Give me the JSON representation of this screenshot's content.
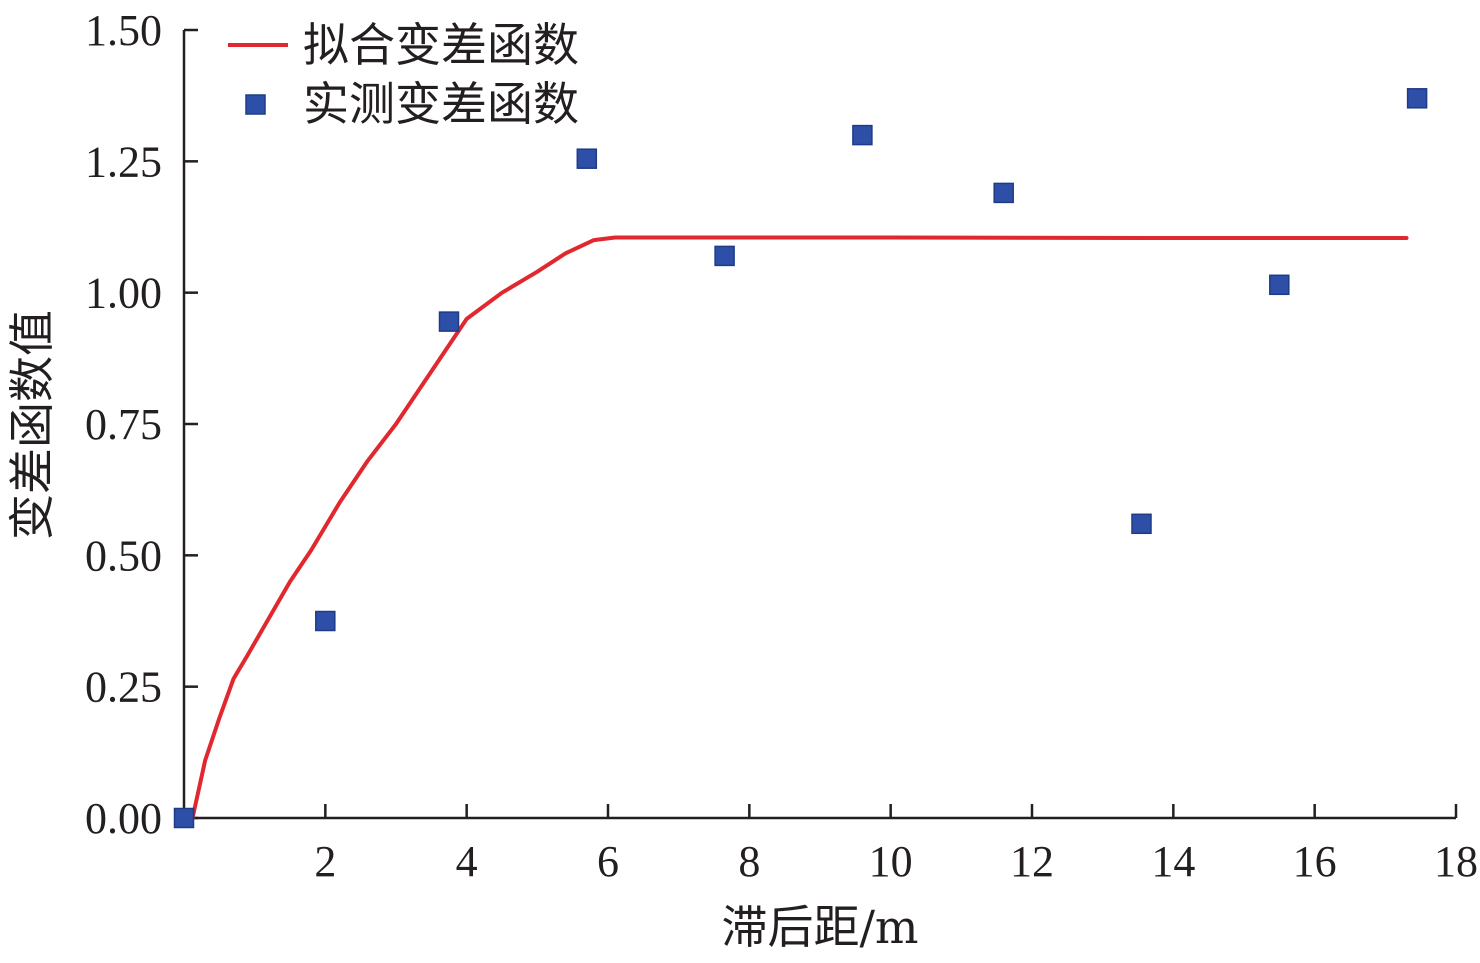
{
  "chart_data": {
    "type": "scatter",
    "xlabel": "滞后距/m",
    "ylabel": "变差函数值",
    "xlim": [
      0.0,
      18.0
    ],
    "ylim": [
      0.0,
      1.5
    ],
    "xticks": [
      2,
      4,
      6,
      8,
      10,
      12,
      14,
      16,
      18
    ],
    "xtick_labels": [
      "2",
      "4",
      "6",
      "8",
      "10",
      "12",
      "14",
      "16",
      "18"
    ],
    "yticks": [
      0.0,
      0.25,
      0.5,
      0.75,
      1.0,
      1.25,
      1.5
    ],
    "ytick_labels": [
      "0.00",
      "0.25",
      "0.50",
      "0.75",
      "1.00",
      "1.25",
      "1.50"
    ],
    "grid": false,
    "legend_position": "top-left",
    "series": [
      {
        "name": "拟合变差函数",
        "kind": "line",
        "color": "#e0282e",
        "x": [
          0.12,
          0.3,
          0.5,
          0.7,
          0.9,
          1.2,
          1.5,
          1.8,
          2.2,
          2.6,
          3.0,
          3.5,
          4.0,
          4.5,
          5.0,
          5.4,
          5.8,
          6.1,
          7.0,
          10.0,
          14.0,
          17.3
        ],
        "y": [
          0.0,
          0.11,
          0.19,
          0.265,
          0.31,
          0.38,
          0.45,
          0.51,
          0.6,
          0.68,
          0.75,
          0.85,
          0.95,
          1.0,
          1.04,
          1.075,
          1.1,
          1.105,
          1.105,
          1.105,
          1.104,
          1.104
        ]
      },
      {
        "name": "实测变差函数",
        "kind": "scatter",
        "color": "#2e4fa8",
        "x": [
          0.0,
          2.0,
          3.75,
          5.7,
          7.65,
          9.6,
          11.6,
          13.55,
          15.5,
          17.45
        ],
        "y": [
          0.0,
          0.375,
          0.945,
          1.255,
          1.07,
          1.3,
          1.19,
          0.56,
          1.015,
          1.37
        ]
      }
    ]
  }
}
